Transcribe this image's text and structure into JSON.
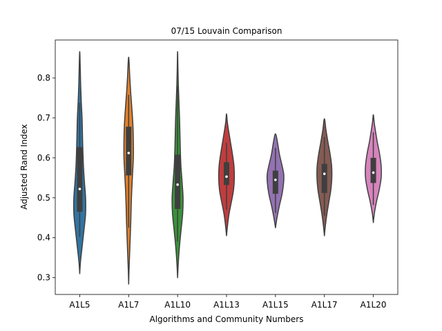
{
  "chart_data": {
    "type": "violin",
    "title": "07/15 Louvain Comparison",
    "xlabel": "Algorithms and Community Numbers",
    "ylabel": "Adjusted Rand Index",
    "ylim": [
      0.258,
      0.895
    ],
    "yticks": [
      0.3,
      0.4,
      0.5,
      0.6,
      0.7,
      0.8
    ],
    "categories": [
      "A1L5",
      "A1L7",
      "A1L10",
      "A1L13",
      "A1L15",
      "A1L17",
      "A1L20"
    ],
    "series": [
      {
        "name": "A1L5",
        "color": "#3274a1",
        "min": 0.31,
        "max": 0.866,
        "q1": 0.465,
        "median": 0.522,
        "q3": 0.627,
        "whisker_low": 0.402,
        "whisker_high": 0.738,
        "profile": [
          [
            0.31,
            0.0
          ],
          [
            0.34,
            0.04
          ],
          [
            0.38,
            0.13
          ],
          [
            0.42,
            0.22
          ],
          [
            0.46,
            0.3
          ],
          [
            0.5,
            0.3
          ],
          [
            0.54,
            0.24
          ],
          [
            0.58,
            0.19
          ],
          [
            0.62,
            0.16
          ],
          [
            0.66,
            0.14
          ],
          [
            0.7,
            0.12
          ],
          [
            0.74,
            0.08
          ],
          [
            0.78,
            0.05
          ],
          [
            0.82,
            0.03
          ],
          [
            0.866,
            0.0
          ]
        ]
      },
      {
        "name": "A1L7",
        "color": "#e1812c",
        "min": 0.284,
        "max": 0.852,
        "q1": 0.556,
        "median": 0.612,
        "q3": 0.678,
        "whisker_low": 0.425,
        "whisker_high": 0.758,
        "profile": [
          [
            0.284,
            0.0
          ],
          [
            0.32,
            0.02
          ],
          [
            0.36,
            0.05
          ],
          [
            0.4,
            0.08
          ],
          [
            0.44,
            0.11
          ],
          [
            0.48,
            0.13
          ],
          [
            0.52,
            0.16
          ],
          [
            0.56,
            0.2
          ],
          [
            0.6,
            0.24
          ],
          [
            0.64,
            0.24
          ],
          [
            0.68,
            0.22
          ],
          [
            0.72,
            0.17
          ],
          [
            0.76,
            0.11
          ],
          [
            0.8,
            0.06
          ],
          [
            0.852,
            0.0
          ]
        ]
      },
      {
        "name": "A1L10",
        "color": "#3a923a",
        "min": 0.3,
        "max": 0.866,
        "q1": 0.472,
        "median": 0.533,
        "q3": 0.608,
        "whisker_low": 0.39,
        "whisker_high": 0.78,
        "profile": [
          [
            0.3,
            0.0
          ],
          [
            0.34,
            0.04
          ],
          [
            0.38,
            0.1
          ],
          [
            0.42,
            0.18
          ],
          [
            0.46,
            0.26
          ],
          [
            0.5,
            0.28
          ],
          [
            0.54,
            0.23
          ],
          [
            0.58,
            0.17
          ],
          [
            0.62,
            0.14
          ],
          [
            0.66,
            0.12
          ],
          [
            0.7,
            0.1
          ],
          [
            0.74,
            0.07
          ],
          [
            0.78,
            0.04
          ],
          [
            0.82,
            0.02
          ],
          [
            0.866,
            0.0
          ]
        ]
      },
      {
        "name": "A1L13",
        "color": "#c03d3e",
        "min": 0.405,
        "max": 0.71,
        "q1": 0.532,
        "median": 0.553,
        "q3": 0.589,
        "whisker_low": 0.47,
        "whisker_high": 0.638,
        "profile": [
          [
            0.405,
            0.0
          ],
          [
            0.43,
            0.05
          ],
          [
            0.46,
            0.13
          ],
          [
            0.49,
            0.25
          ],
          [
            0.52,
            0.36
          ],
          [
            0.55,
            0.4
          ],
          [
            0.58,
            0.38
          ],
          [
            0.61,
            0.3
          ],
          [
            0.64,
            0.2
          ],
          [
            0.67,
            0.1
          ],
          [
            0.69,
            0.04
          ],
          [
            0.71,
            0.0
          ]
        ]
      },
      {
        "name": "A1L15",
        "color": "#9372b2",
        "min": 0.425,
        "max": 0.66,
        "q1": 0.51,
        "median": 0.545,
        "q3": 0.568,
        "whisker_low": 0.462,
        "whisker_high": 0.625,
        "profile": [
          [
            0.425,
            0.0
          ],
          [
            0.45,
            0.08
          ],
          [
            0.48,
            0.2
          ],
          [
            0.51,
            0.34
          ],
          [
            0.54,
            0.42
          ],
          [
            0.56,
            0.42
          ],
          [
            0.58,
            0.34
          ],
          [
            0.61,
            0.2
          ],
          [
            0.64,
            0.1
          ],
          [
            0.66,
            0.0
          ]
        ]
      },
      {
        "name": "A1L17",
        "color": "#845b53",
        "min": 0.405,
        "max": 0.698,
        "q1": 0.512,
        "median": 0.56,
        "q3": 0.585,
        "whisker_low": 0.455,
        "whisker_high": 0.652,
        "profile": [
          [
            0.405,
            0.0
          ],
          [
            0.43,
            0.05
          ],
          [
            0.46,
            0.13
          ],
          [
            0.49,
            0.23
          ],
          [
            0.52,
            0.33
          ],
          [
            0.55,
            0.38
          ],
          [
            0.58,
            0.37
          ],
          [
            0.61,
            0.29
          ],
          [
            0.64,
            0.18
          ],
          [
            0.67,
            0.08
          ],
          [
            0.698,
            0.0
          ]
        ]
      },
      {
        "name": "A1L20",
        "color": "#d684bd",
        "min": 0.438,
        "max": 0.708,
        "q1": 0.537,
        "median": 0.563,
        "q3": 0.6,
        "whisker_low": 0.482,
        "whisker_high": 0.664,
        "profile": [
          [
            0.438,
            0.0
          ],
          [
            0.46,
            0.05
          ],
          [
            0.49,
            0.16
          ],
          [
            0.52,
            0.3
          ],
          [
            0.55,
            0.4
          ],
          [
            0.58,
            0.4
          ],
          [
            0.61,
            0.32
          ],
          [
            0.64,
            0.2
          ],
          [
            0.67,
            0.1
          ],
          [
            0.69,
            0.04
          ],
          [
            0.708,
            0.0
          ]
        ]
      }
    ]
  }
}
